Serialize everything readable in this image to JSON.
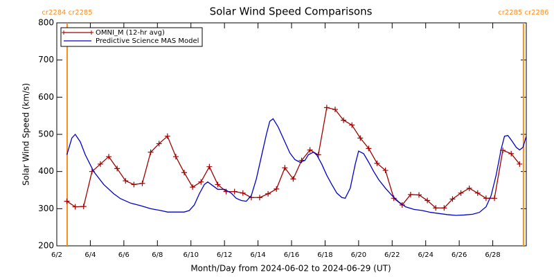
{
  "chart_data": {
    "type": "line",
    "title": "Solar Wind Speed Comparisons",
    "xlabel": "Month/Day from 2024-06-02 to 2024-06-29 (UT)",
    "ylabel": "Solar Wind Speed (km/s)",
    "xlim": [
      2,
      30
    ],
    "ylim": [
      200,
      800
    ],
    "xticks": [
      {
        "value": 2,
        "label": "6/2"
      },
      {
        "value": 4,
        "label": "6/4"
      },
      {
        "value": 6,
        "label": "6/6"
      },
      {
        "value": 8,
        "label": "6/8"
      },
      {
        "value": 10,
        "label": "6/10"
      },
      {
        "value": 12,
        "label": "6/12"
      },
      {
        "value": 14,
        "label": "6/14"
      },
      {
        "value": 16,
        "label": "6/16"
      },
      {
        "value": 18,
        "label": "6/18"
      },
      {
        "value": 20,
        "label": "6/20"
      },
      {
        "value": 22,
        "label": "6/22"
      },
      {
        "value": 24,
        "label": "6/24"
      },
      {
        "value": 26,
        "label": "6/26"
      },
      {
        "value": 28,
        "label": "6/28"
      }
    ],
    "yticks": [
      200,
      300,
      400,
      500,
      600,
      700,
      800
    ],
    "legend": "upper left",
    "boundaries": [
      {
        "x": 2.62,
        "label": "cr2284 cr2285",
        "color": "#ff8c1a"
      },
      {
        "x": 29.83,
        "label": "cr2285 cr2286",
        "color": "#ff8c1a"
      }
    ],
    "series": [
      {
        "name": "OMNI_M (12-hr avg)",
        "color": "#a00000",
        "marker": "+",
        "x": [
          2.6,
          3.1,
          3.6,
          4.1,
          4.6,
          5.1,
          5.6,
          6.1,
          6.6,
          7.1,
          7.6,
          8.1,
          8.6,
          9.1,
          9.6,
          10.1,
          10.6,
          11.1,
          11.6,
          12.1,
          12.6,
          13.1,
          13.6,
          14.1,
          14.6,
          15.1,
          15.6,
          16.1,
          16.6,
          17.1,
          17.6,
          18.1,
          18.6,
          19.1,
          19.6,
          20.1,
          20.6,
          21.1,
          21.6,
          22.1,
          22.6,
          23.1,
          23.6,
          24.1,
          24.6,
          25.1,
          25.6,
          26.1,
          26.6,
          27.1,
          27.6,
          28.1,
          28.6,
          29.1,
          29.6
        ],
        "values": [
          320,
          305,
          306,
          400,
          420,
          440,
          408,
          375,
          365,
          368,
          452,
          475,
          495,
          440,
          397,
          358,
          372,
          413,
          365,
          346,
          346,
          342,
          330,
          330,
          340,
          353,
          410,
          380,
          430,
          458,
          445,
          572,
          567,
          538,
          525,
          490,
          462,
          422,
          403,
          328,
          310,
          338,
          337,
          322,
          302,
          302,
          326,
          342,
          355,
          342,
          328,
          328,
          457,
          448,
          420
        ]
      },
      {
        "name": "Predictive Science MAS Model",
        "color": "#0000cc",
        "marker": null,
        "x": [
          2.6,
          2.9,
          3.1,
          3.4,
          3.7,
          4.2,
          4.8,
          5.4,
          5.8,
          6.4,
          7,
          7.6,
          8.2,
          8.6,
          9.2,
          9.6,
          9.9,
          10.2,
          10.5,
          10.8,
          11,
          11.3,
          11.6,
          12,
          12.4,
          12.7,
          13,
          13.3,
          13.6,
          13.9,
          14.2,
          14.5,
          14.7,
          14.9,
          15.2,
          15.6,
          15.9,
          16.2,
          16.5,
          16.8,
          17,
          17.3,
          17.5,
          17.8,
          18.1,
          18.4,
          18.7,
          19,
          19.2,
          19.5,
          19.8,
          20,
          20.3,
          20.6,
          20.9,
          21.2,
          21.6,
          22,
          22.4,
          22.8,
          23.3,
          23.8,
          24.3,
          24.8,
          25.3,
          25.8,
          26.3,
          26.8,
          27.2,
          27.6,
          27.9,
          28.2,
          28.5,
          28.7,
          28.9,
          29.1,
          29.4,
          29.6,
          29.8,
          30
        ],
        "values": [
          445,
          490,
          500,
          480,
          445,
          400,
          365,
          340,
          327,
          315,
          308,
          300,
          295,
          291,
          291,
          291,
          295,
          310,
          340,
          365,
          372,
          362,
          352,
          352,
          342,
          328,
          322,
          320,
          335,
          380,
          440,
          500,
          535,
          542,
          520,
          480,
          450,
          432,
          425,
          430,
          445,
          452,
          445,
          420,
          390,
          365,
          342,
          330,
          328,
          355,
          420,
          455,
          448,
          425,
          400,
          378,
          355,
          335,
          318,
          305,
          298,
          295,
          290,
          287,
          284,
          282,
          283,
          285,
          290,
          305,
          335,
          390,
          460,
          495,
          497,
          485,
          465,
          458,
          465,
          495
        ]
      }
    ]
  }
}
